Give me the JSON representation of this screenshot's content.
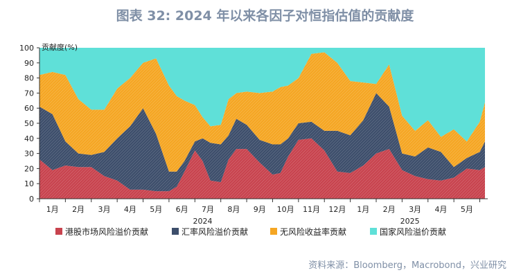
{
  "title": "图表 32: 2024 年以来各因子对恒指估值的贡献度",
  "source": "资料来源：Bloomberg，Macrobond，兴业研究",
  "colors": {
    "hk_equity_risk": "#c8434e",
    "fx_risk": "#3d4e6b",
    "risk_free": "#f5a623",
    "country_risk": "#5fe0d8"
  },
  "chart_data": {
    "type": "area",
    "stacked": true,
    "ylabel": "贡献度(%)",
    "ylim": [
      0,
      100
    ],
    "yticks": [
      0,
      10,
      20,
      30,
      40,
      50,
      60,
      70,
      80,
      90,
      100
    ],
    "x_labels": [
      "1月",
      "2月",
      "3月",
      "4月",
      "5月",
      "6月",
      "7月",
      "8月",
      "9月",
      "10月",
      "11月",
      "12月",
      "1月",
      "2月",
      "3月",
      "4月",
      "5月"
    ],
    "year_labels": [
      {
        "label": "2024",
        "at_month_index": 6.3
      },
      {
        "label": "2025",
        "at_month_index": 14.3
      }
    ],
    "x_range_months": [
      0,
      17.2
    ],
    "legend_position": "bottom",
    "series": [
      {
        "name": "港股市场风险溢价贡献",
        "color_key": "hk_equity_risk",
        "x": [
          0,
          0.5,
          1.0,
          1.5,
          2.0,
          2.5,
          3.0,
          3.5,
          4.0,
          4.5,
          5.0,
          5.3,
          5.6,
          6.0,
          6.3,
          6.6,
          7.0,
          7.3,
          7.6,
          8.0,
          8.5,
          9.0,
          9.3,
          9.6,
          10.0,
          10.5,
          11.0,
          11.5,
          12.0,
          12.5,
          13.0,
          13.5,
          14.0,
          14.5,
          15.0,
          15.5,
          16.0,
          16.5,
          17.0,
          17.2
        ],
        "values": [
          26,
          19,
          22,
          21,
          21,
          15,
          12,
          6,
          6,
          5,
          5,
          8,
          18,
          32,
          25,
          12,
          11,
          26,
          33,
          33,
          24,
          16,
          17,
          28,
          39,
          40,
          32,
          18,
          17,
          22,
          30,
          33,
          19,
          15,
          13,
          12,
          14,
          20,
          19,
          21
        ]
      },
      {
        "name": "汇率风险溢价贡献",
        "color_key": "fx_risk",
        "x": [
          0,
          0.5,
          1.0,
          1.5,
          2.0,
          2.5,
          3.0,
          3.5,
          4.0,
          4.5,
          5.0,
          5.3,
          5.6,
          6.0,
          6.3,
          6.6,
          7.0,
          7.3,
          7.6,
          8.0,
          8.5,
          9.0,
          9.3,
          9.6,
          10.0,
          10.5,
          11.0,
          11.5,
          12.0,
          12.5,
          13.0,
          13.5,
          14.0,
          14.5,
          15.0,
          15.5,
          16.0,
          16.5,
          17.0,
          17.2
        ],
        "values": [
          35,
          37,
          16,
          9,
          8,
          16,
          28,
          42,
          54,
          38,
          13,
          10,
          7,
          6,
          15,
          25,
          25,
          16,
          20,
          16,
          15,
          20,
          19,
          12,
          11,
          11,
          13,
          27,
          25,
          30,
          40,
          28,
          11,
          13,
          21,
          19,
          7,
          7,
          12,
          17
        ]
      },
      {
        "name": "无风险收益率贡献",
        "color_key": "risk_free",
        "x": [
          0,
          0.5,
          1.0,
          1.5,
          2.0,
          2.5,
          3.0,
          3.5,
          4.0,
          4.5,
          5.0,
          5.3,
          5.6,
          6.0,
          6.3,
          6.6,
          7.0,
          7.3,
          7.6,
          8.0,
          8.5,
          9.0,
          9.3,
          9.6,
          10.0,
          10.5,
          11.0,
          11.5,
          12.0,
          12.5,
          13.0,
          13.5,
          14.0,
          14.5,
          15.0,
          15.5,
          16.0,
          16.5,
          17.0,
          17.2
        ],
        "values": [
          21,
          28,
          44,
          36,
          30,
          28,
          33,
          32,
          30,
          50,
          57,
          50,
          40,
          24,
          14,
          11,
          13,
          24,
          17,
          22,
          31,
          35,
          38,
          35,
          30,
          45,
          52,
          45,
          36,
          25,
          6,
          28,
          25,
          17,
          18,
          10,
          25,
          11,
          20,
          26
        ]
      },
      {
        "name": "国家风险溢价贡献",
        "color_key": "country_risk",
        "x": [
          0,
          0.5,
          1.0,
          1.5,
          2.0,
          2.5,
          3.0,
          3.5,
          4.0,
          4.5,
          5.0,
          5.3,
          5.6,
          6.0,
          6.3,
          6.6,
          7.0,
          7.3,
          7.6,
          8.0,
          8.5,
          9.0,
          9.3,
          9.6,
          10.0,
          10.5,
          11.0,
          11.5,
          12.0,
          12.5,
          13.0,
          13.5,
          14.0,
          14.5,
          15.0,
          15.5,
          16.0,
          16.5,
          17.0,
          17.2
        ],
        "values": [
          18,
          16,
          18,
          34,
          41,
          41,
          27,
          20,
          10,
          7,
          25,
          32,
          35,
          38,
          46,
          52,
          51,
          34,
          30,
          29,
          30,
          29,
          26,
          25,
          20,
          4,
          3,
          10,
          22,
          23,
          24,
          11,
          45,
          55,
          48,
          59,
          54,
          62,
          49,
          36
        ]
      }
    ]
  }
}
